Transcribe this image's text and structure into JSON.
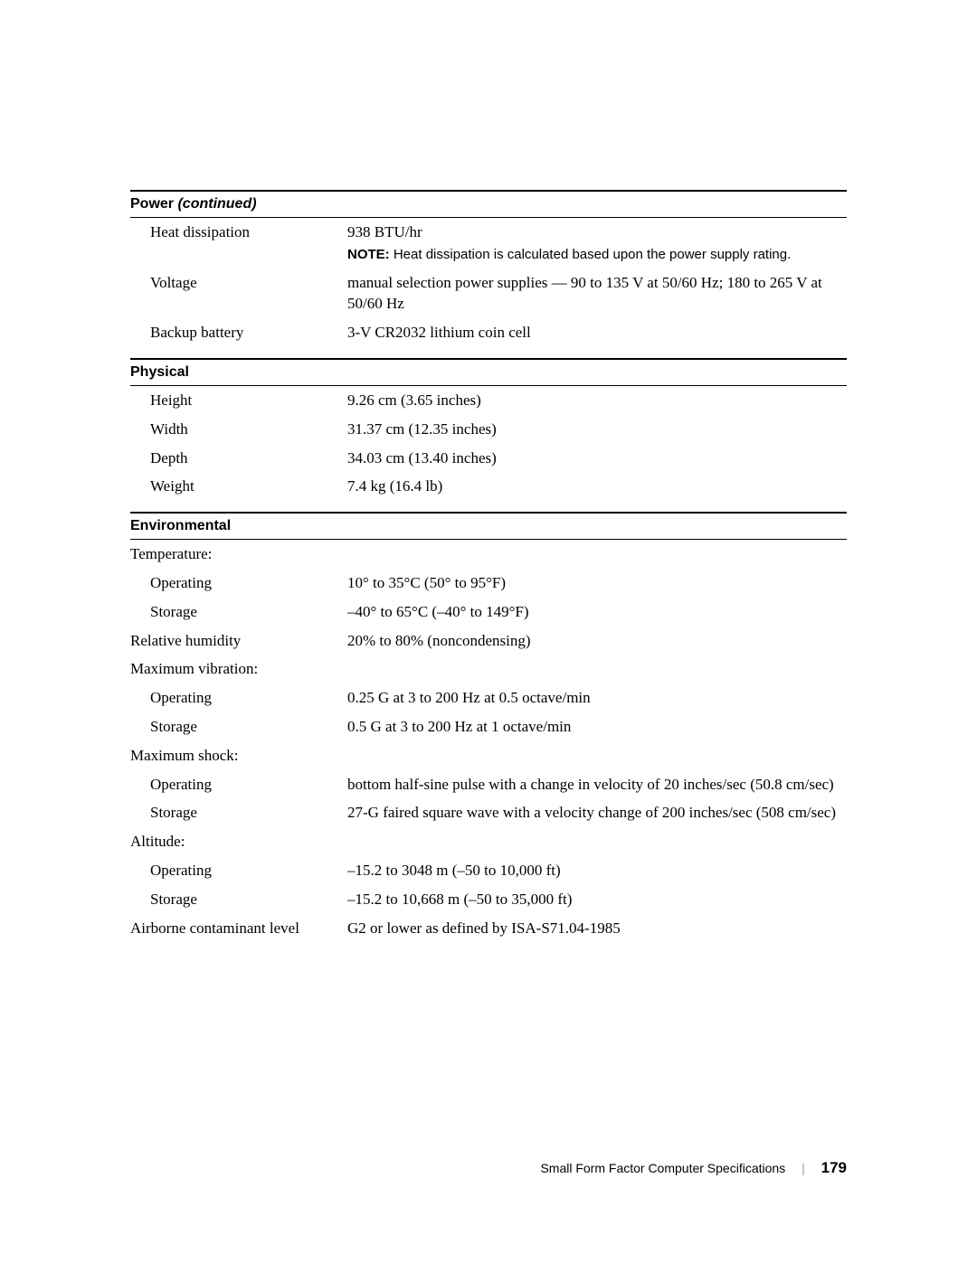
{
  "sections": {
    "power": {
      "title": "Power",
      "continued": " (continued)",
      "rows": [
        {
          "label": "Heat dissipation",
          "value": "938 BTU/hr",
          "note_label": "NOTE: ",
          "note_text": "Heat dissipation is calculated based upon the power supply rating."
        },
        {
          "label": "Voltage",
          "value": "manual selection power supplies — 90 to 135 V at 50/60 Hz; 180 to 265 V at 50/60 Hz"
        },
        {
          "label": "Backup battery",
          "value": "3-V CR2032 lithium coin cell"
        }
      ]
    },
    "physical": {
      "title": "Physical",
      "rows": [
        {
          "label": "Height",
          "value": "9.26 cm (3.65 inches)"
        },
        {
          "label": "Width",
          "value": "31.37 cm (12.35 inches)"
        },
        {
          "label": "Depth",
          "value": "34.03 cm (13.40 inches)"
        },
        {
          "label": "Weight",
          "value": "7.4 kg (16.4 lb)"
        }
      ]
    },
    "environmental": {
      "title": "Environmental",
      "temperature_header": "Temperature:",
      "temp_operating_label": "Operating",
      "temp_operating_value": "10° to 35°C (50° to 95°F)",
      "temp_storage_label": "Storage",
      "temp_storage_value": "–40° to 65°C (–40° to 149°F)",
      "humidity_label": "Relative humidity",
      "humidity_value": "20% to 80% (noncondensing)",
      "vibration_header": "Maximum vibration:",
      "vib_operating_label": "Operating",
      "vib_operating_value": "0.25 G at 3 to 200 Hz at 0.5 octave/min",
      "vib_storage_label": "Storage",
      "vib_storage_value": "0.5 G at 3 to 200 Hz at 1 octave/min",
      "shock_header": "Maximum shock:",
      "shock_operating_label": "Operating",
      "shock_operating_value": "bottom half-sine pulse with a change in velocity of 20 inches/sec (50.8 cm/sec)",
      "shock_storage_label": "Storage",
      "shock_storage_value": "27-G faired square wave with a velocity change of 200 inches/sec (508 cm/sec)",
      "altitude_header": "Altitude:",
      "alt_operating_label": "Operating",
      "alt_operating_value": "–15.2 to 3048 m (–50 to 10,000 ft)",
      "alt_storage_label": "Storage",
      "alt_storage_value": "–15.2 to 10,668 m (–50 to 35,000 ft)",
      "airborne_label": "Airborne contaminant level",
      "airborne_value": "G2 or lower as defined by ISA-S71.04-1985"
    }
  },
  "footer": {
    "title": "Small Form Factor Computer Specifications",
    "separator": "|",
    "page": "179"
  }
}
